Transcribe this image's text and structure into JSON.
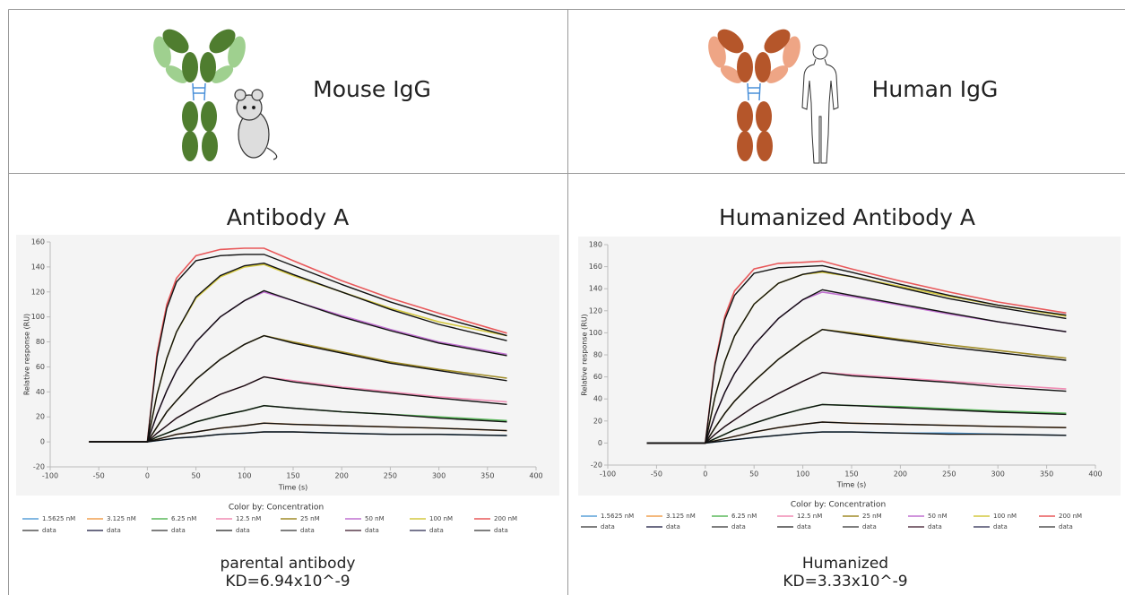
{
  "panels": [
    {
      "label": "Mouse IgG",
      "caption": "parental antibody",
      "kd": "KD=6.94x10^-9"
    },
    {
      "label": "Human IgG",
      "caption": "Humanized",
      "kd": "KD=3.33x10^-9"
    }
  ],
  "chart_data": [
    {
      "type": "line",
      "title": "Antibody A",
      "xlabel": "Time (s)",
      "ylabel": "Relative response (RU)",
      "legend_title": "Color by: Concentration",
      "x": [
        -60,
        0,
        10,
        20,
        30,
        50,
        75,
        100,
        120,
        150,
        200,
        250,
        300,
        370
      ],
      "xlim": [
        -100,
        400
      ],
      "xticks": [
        -100,
        -50,
        0,
        50,
        100,
        150,
        200,
        250,
        300,
        350,
        400
      ],
      "ylim": [
        -20,
        160
      ],
      "yticks": [
        -20,
        0,
        20,
        40,
        60,
        80,
        100,
        120,
        140,
        160
      ],
      "grid": false,
      "series": [
        {
          "name": "1.5625 nM",
          "color": "#5aa0d8",
          "values": [
            0,
            0,
            1,
            2,
            3,
            4,
            6,
            7,
            8,
            8,
            7,
            6,
            6,
            5
          ]
        },
        {
          "name": "3.125 nM",
          "color": "#f0a050",
          "values": [
            0,
            0,
            2,
            4,
            6,
            8,
            11,
            13,
            15,
            14,
            13,
            12,
            11,
            9
          ]
        },
        {
          "name": "6.25 nM",
          "color": "#5cb85c",
          "values": [
            0,
            0,
            4,
            7,
            10,
            16,
            21,
            25,
            29,
            27,
            24,
            22,
            20,
            17
          ]
        },
        {
          "name": "12.5 nM",
          "color": "#f08cb4",
          "values": [
            0,
            0,
            7,
            13,
            19,
            28,
            38,
            45,
            52,
            49,
            44,
            40,
            36,
            32
          ]
        },
        {
          "name": "25 nM",
          "color": "#a08c28",
          "values": [
            0,
            0,
            12,
            24,
            33,
            50,
            66,
            78,
            85,
            80,
            72,
            64,
            58,
            51
          ]
        },
        {
          "name": "50 nM",
          "color": "#c070d0",
          "values": [
            0,
            0,
            22,
            41,
            57,
            80,
            100,
            113,
            120,
            113,
            101,
            90,
            80,
            70
          ]
        },
        {
          "name": "100 nM",
          "color": "#d4c840",
          "values": [
            0,
            0,
            38,
            67,
            88,
            115,
            132,
            140,
            142,
            133,
            120,
            107,
            96,
            85
          ]
        },
        {
          "name": "200 nM",
          "color": "#e8585a",
          "values": [
            0,
            0,
            71,
            110,
            131,
            149,
            154,
            155,
            155,
            145,
            129,
            115,
            103,
            87
          ]
        },
        {
          "name": "data",
          "color": "#555555",
          "values": [
            0,
            0,
            1,
            2,
            3,
            4,
            6,
            7,
            8,
            8,
            7,
            6,
            6,
            5
          ]
        },
        {
          "name": "data",
          "color": "#3c3c5c",
          "values": [
            0,
            0,
            2,
            4,
            6,
            8,
            11,
            13,
            15,
            14,
            13,
            12,
            11,
            9
          ]
        },
        {
          "name": "data",
          "color": "#555555",
          "values": [
            0,
            0,
            4,
            7,
            10,
            16,
            21,
            25,
            29,
            27,
            24,
            22,
            19,
            16
          ]
        },
        {
          "name": "data",
          "color": "#444444",
          "values": [
            0,
            0,
            7,
            13,
            19,
            28,
            38,
            45,
            52,
            48,
            43,
            39,
            35,
            30
          ]
        },
        {
          "name": "data",
          "color": "#555555",
          "values": [
            0,
            0,
            12,
            24,
            33,
            50,
            66,
            78,
            85,
            79,
            71,
            63,
            57,
            49
          ]
        },
        {
          "name": "data",
          "color": "#5a3c4c",
          "values": [
            0,
            0,
            22,
            41,
            57,
            80,
            100,
            113,
            121,
            113,
            100,
            89,
            79,
            69
          ]
        },
        {
          "name": "data",
          "color": "#4c4c6c",
          "values": [
            0,
            0,
            38,
            67,
            88,
            116,
            133,
            141,
            143,
            134,
            120,
            106,
            94,
            81
          ]
        },
        {
          "name": "data",
          "color": "#555555",
          "values": [
            0,
            0,
            68,
            107,
            128,
            145,
            149,
            150,
            150,
            141,
            126,
            112,
            100,
            85
          ]
        }
      ]
    },
    {
      "type": "line",
      "title": "Humanized Antibody A",
      "xlabel": "Time (s)",
      "ylabel": "Relative response (RU)",
      "legend_title": "Color by: Concentration",
      "x": [
        -60,
        0,
        10,
        20,
        30,
        50,
        75,
        100,
        120,
        150,
        200,
        250,
        300,
        370
      ],
      "xlim": [
        -100,
        400
      ],
      "xticks": [
        -100,
        -50,
        0,
        50,
        100,
        150,
        200,
        250,
        300,
        350,
        400
      ],
      "ylim": [
        -20,
        180
      ],
      "yticks": [
        -20,
        0,
        20,
        40,
        60,
        80,
        100,
        120,
        140,
        160,
        180
      ],
      "grid": false,
      "series": [
        {
          "name": "1.5625 nM",
          "color": "#5aa0d8",
          "values": [
            0,
            0,
            1,
            2,
            3,
            5,
            7,
            9,
            10,
            10,
            9,
            9,
            8,
            7
          ]
        },
        {
          "name": "3.125 nM",
          "color": "#f0a050",
          "values": [
            0,
            0,
            2,
            4,
            6,
            10,
            14,
            17,
            19,
            18,
            17,
            16,
            15,
            14
          ]
        },
        {
          "name": "6.25 nM",
          "color": "#5cb85c",
          "values": [
            0,
            0,
            4,
            8,
            12,
            18,
            25,
            31,
            35,
            34,
            33,
            31,
            29,
            27
          ]
        },
        {
          "name": "12.5 nM",
          "color": "#f08cb4",
          "values": [
            0,
            0,
            8,
            15,
            21,
            33,
            45,
            56,
            64,
            62,
            59,
            56,
            53,
            49
          ]
        },
        {
          "name": "25 nM",
          "color": "#a08c28",
          "values": [
            0,
            0,
            14,
            27,
            38,
            56,
            76,
            92,
            103,
            100,
            94,
            89,
            84,
            77
          ]
        },
        {
          "name": "50 nM",
          "color": "#c070d0",
          "values": [
            0,
            0,
            25,
            46,
            63,
            89,
            113,
            130,
            137,
            133,
            125,
            117,
            110,
            101
          ]
        },
        {
          "name": "100 nM",
          "color": "#d4c840",
          "values": [
            0,
            0,
            42,
            74,
            97,
            126,
            145,
            153,
            155,
            151,
            142,
            133,
            125,
            115
          ]
        },
        {
          "name": "200 nM",
          "color": "#e8585a",
          "values": [
            0,
            0,
            73,
            115,
            138,
            158,
            163,
            164,
            165,
            158,
            147,
            137,
            128,
            118
          ]
        },
        {
          "name": "data",
          "color": "#555555",
          "values": [
            0,
            0,
            1,
            2,
            3,
            5,
            7,
            9,
            10,
            10,
            9,
            8,
            8,
            7
          ]
        },
        {
          "name": "data",
          "color": "#3c3c5c",
          "values": [
            0,
            0,
            2,
            4,
            6,
            10,
            14,
            17,
            19,
            18,
            17,
            16,
            15,
            14
          ]
        },
        {
          "name": "data",
          "color": "#555555",
          "values": [
            0,
            0,
            4,
            8,
            12,
            18,
            25,
            31,
            35,
            34,
            32,
            30,
            28,
            26
          ]
        },
        {
          "name": "data",
          "color": "#444444",
          "values": [
            0,
            0,
            8,
            15,
            21,
            33,
            45,
            56,
            64,
            61,
            58,
            55,
            51,
            47
          ]
        },
        {
          "name": "data",
          "color": "#555555",
          "values": [
            0,
            0,
            14,
            27,
            38,
            56,
            76,
            92,
            103,
            99,
            93,
            87,
            82,
            75
          ]
        },
        {
          "name": "data",
          "color": "#5a3c4c",
          "values": [
            0,
            0,
            25,
            46,
            63,
            89,
            113,
            130,
            139,
            134,
            126,
            118,
            110,
            101
          ]
        },
        {
          "name": "data",
          "color": "#4c4c6c",
          "values": [
            0,
            0,
            42,
            74,
            97,
            126,
            145,
            153,
            156,
            151,
            141,
            131,
            123,
            113
          ]
        },
        {
          "name": "data",
          "color": "#555555",
          "values": [
            0,
            0,
            71,
            112,
            134,
            154,
            159,
            160,
            161,
            155,
            144,
            134,
            125,
            116
          ]
        }
      ]
    }
  ]
}
